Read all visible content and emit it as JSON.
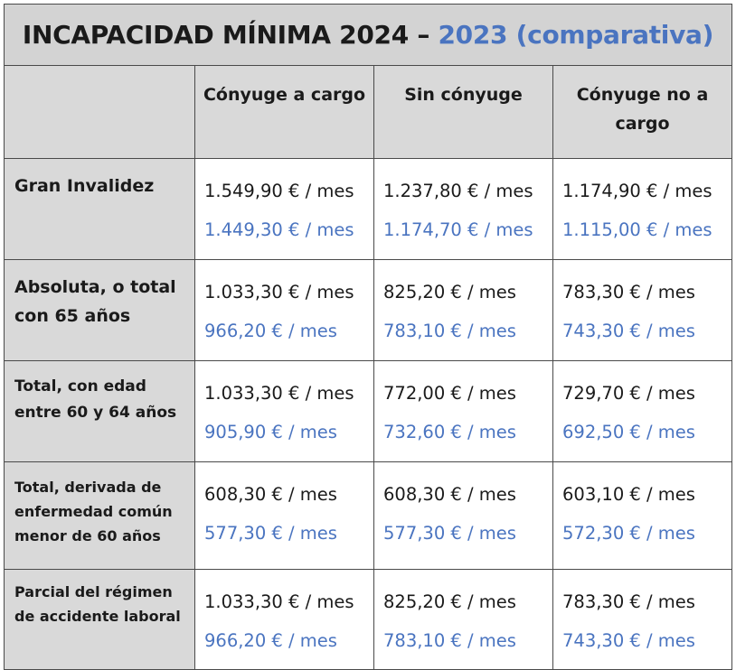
{
  "title": {
    "main": "INCAPACIDAD MÍNIMA 2024 – ",
    "comparison": "2023 (comparativa)"
  },
  "columns": [
    "Cónyuge a cargo",
    "Sin cónyuge",
    "Cónyuge no a cargo"
  ],
  "rows": [
    {
      "label": "Gran Invalidez",
      "values_2024": [
        "1.549,90 € / mes",
        "1.237,80 € / mes",
        "1.174,90 € / mes"
      ],
      "values_2023": [
        "1.449,30 € / mes",
        "1.174,70 € / mes",
        "1.115,00 € / mes"
      ]
    },
    {
      "label": "Absoluta, o total con 65 años",
      "values_2024": [
        "1.033,30 € / mes",
        "825,20 € / mes",
        "783,30 € / mes"
      ],
      "values_2023": [
        "966,20 € / mes",
        "783,10 € / mes",
        "743,30 € / mes"
      ]
    },
    {
      "label": "Total, con edad entre 60 y 64 años",
      "values_2024": [
        "1.033,30 € / mes",
        "772,00 € / mes",
        "729,70 € / mes"
      ],
      "values_2023": [
        "905,90 € / mes",
        "732,60 € / mes",
        "692,50 € / mes"
      ]
    },
    {
      "label": "Total, derivada de enfermedad común menor de 60 años",
      "values_2024": [
        "608,30 € / mes",
        "608,30 € / mes",
        "603,10 € / mes"
      ],
      "values_2023": [
        "577,30 € / mes",
        "577,30 € / mes",
        "572,30 € / mes"
      ]
    },
    {
      "label": "Parcial del régimen de accidente laboral",
      "values_2024": [
        "1.033,30 € / mes",
        "825,20 € / mes",
        "783,30 € / mes"
      ],
      "values_2023": [
        "966,20 € / mes",
        "783,10 € / mes",
        "743,30 € / mes"
      ]
    }
  ],
  "colors": {
    "header_bg": "#d9d9d9",
    "value_2023": "#4a74c0",
    "value_2024": "#1a1a1a",
    "border": "#4a4a4a"
  }
}
